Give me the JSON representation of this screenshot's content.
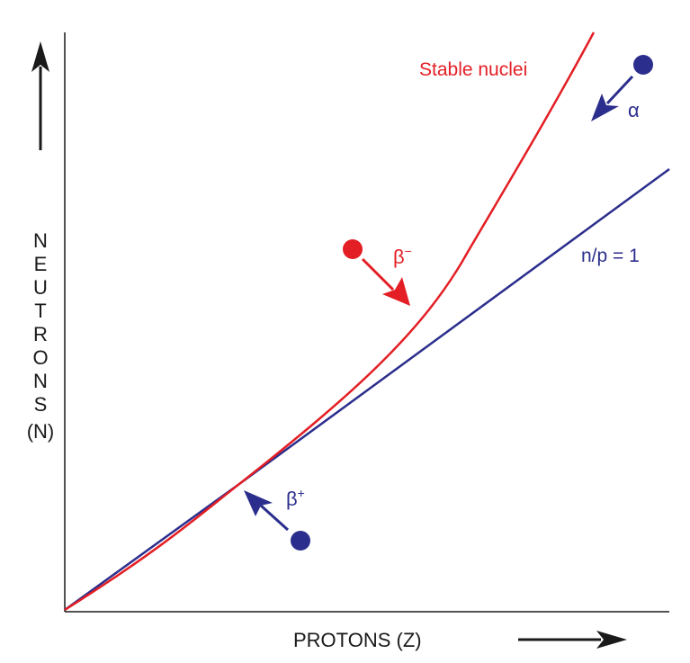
{
  "diagram": {
    "y_axis_letters": [
      "N",
      "E",
      "U",
      "T",
      "R",
      "O",
      "N",
      "S"
    ],
    "y_axis_symbol": "(N)",
    "x_axis_label": "PROTONS (Z)",
    "stable_label": "Stable nuclei",
    "np_label": "n/p = 1",
    "beta_minus": {
      "base": "β",
      "sup": "−"
    },
    "beta_plus": {
      "base": "β",
      "sup": "+"
    },
    "alpha": "α",
    "colors": {
      "red": "#e31e24",
      "blue": "#2b2e8c",
      "axis": "#1a1a1a"
    }
  }
}
